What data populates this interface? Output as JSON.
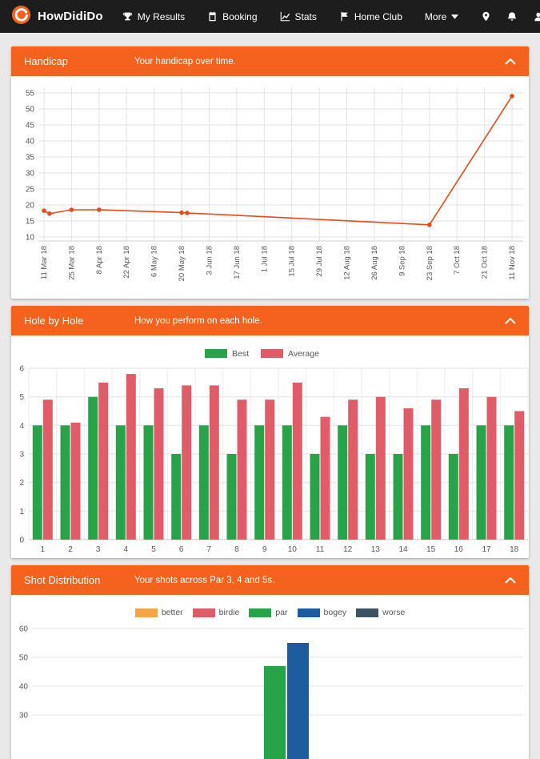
{
  "nav": {
    "brand": "HowDidiDo",
    "items": [
      {
        "label": "My Results",
        "icon": "trophy-icon"
      },
      {
        "label": "Booking",
        "icon": "calendar-icon"
      },
      {
        "label": "Stats",
        "icon": "stats-icon"
      },
      {
        "label": "Home Club",
        "icon": "flag-icon"
      },
      {
        "label": "More",
        "icon": "chevron-down-icon"
      }
    ],
    "right_icons": [
      "location-icon",
      "notifications-icon",
      "profile-icon",
      "search-icon"
    ]
  },
  "colors": {
    "brand_orange": "#f4621d",
    "nav_background": "#1d1d1d",
    "line_series": "#e64a19",
    "best_green": "#28a34a",
    "average_red": "#e05c68",
    "better_orange": "#f3a54a",
    "bogey_blue": "#1d5c9e",
    "worse_slate": "#3d5263"
  },
  "panels": {
    "handicap": {
      "title": "Handicap",
      "subtitle": "Your handicap over time."
    },
    "hole_by_hole": {
      "title": "Hole by Hole",
      "subtitle": "How you perform on each hole."
    },
    "shot_distribution": {
      "title": "Shot Distribution",
      "subtitle": "Your shots across Par 3, 4 and 5s."
    }
  },
  "chart_data": [
    {
      "id": "handicap",
      "type": "line",
      "title": "Handicap",
      "x_ticks": [
        "11 Mar 18",
        "25 Mar 18",
        "8 Apr 18",
        "22 Apr 18",
        "6 May 18",
        "20 May 18",
        "3 Jun 18",
        "17 Jun 18",
        "1 Jul 18",
        "15 Jul 18",
        "29 Jul 18",
        "12 Aug 18",
        "26 Aug 18",
        "9 Sep 18",
        "23 Sep 18",
        "7 Oct 18",
        "21 Oct 18",
        "11 Nov 18"
      ],
      "points": [
        {
          "x": 0,
          "y": 18.2
        },
        {
          "x": 0.2,
          "y": 17.3
        },
        {
          "x": 1,
          "y": 18.5
        },
        {
          "x": 2,
          "y": 18.5
        },
        {
          "x": 5,
          "y": 17.6
        },
        {
          "x": 5.2,
          "y": 17.5
        },
        {
          "x": 14,
          "y": 13.8
        },
        {
          "x": 17,
          "y": 54
        }
      ],
      "ylim": [
        10,
        55
      ],
      "y_ticks": [
        10,
        15,
        20,
        25,
        30,
        35,
        40,
        45,
        50,
        55
      ],
      "line_color": "#e64a19",
      "grid": true,
      "legend_position": "none"
    },
    {
      "id": "hole_by_hole",
      "type": "bar",
      "categories": [
        "1",
        "2",
        "3",
        "4",
        "5",
        "6",
        "7",
        "8",
        "9",
        "10",
        "11",
        "12",
        "13",
        "14",
        "15",
        "16",
        "17",
        "18"
      ],
      "series": [
        {
          "name": "Best",
          "color": "#28a34a",
          "values": [
            4,
            4,
            5,
            4,
            4,
            3,
            4,
            3,
            4,
            4,
            3,
            4,
            3,
            3,
            4,
            3,
            4,
            4
          ]
        },
        {
          "name": "Average",
          "color": "#e05c68",
          "values": [
            4.9,
            4.1,
            5.5,
            5.8,
            5.3,
            5.4,
            5.4,
            4.9,
            4.9,
            5.5,
            4.3,
            4.9,
            5.0,
            4.6,
            4.9,
            5.3,
            5.0,
            4.5
          ]
        }
      ],
      "ylim": [
        0,
        6
      ],
      "y_ticks": [
        0,
        1,
        2,
        3,
        4,
        5,
        6
      ],
      "grid": true,
      "legend_position": "top"
    },
    {
      "id": "shot_distribution",
      "type": "bar",
      "legend": [
        {
          "name": "better",
          "color": "#f3a54a"
        },
        {
          "name": "birdie",
          "color": "#e05c68"
        },
        {
          "name": "par",
          "color": "#28a34a"
        },
        {
          "name": "bogey",
          "color": "#1d5c9e"
        },
        {
          "name": "worse",
          "color": "#3d5263"
        }
      ],
      "visible_bars": [
        {
          "series": "par",
          "value": 47,
          "color": "#28a34a"
        },
        {
          "series": "bogey",
          "value": 55,
          "color": "#1d5c9e"
        }
      ],
      "y_ticks_visible": [
        60,
        50,
        40,
        30
      ],
      "grid": true,
      "legend_position": "top",
      "note": "chart cropped by bottom edge of viewport"
    }
  ]
}
